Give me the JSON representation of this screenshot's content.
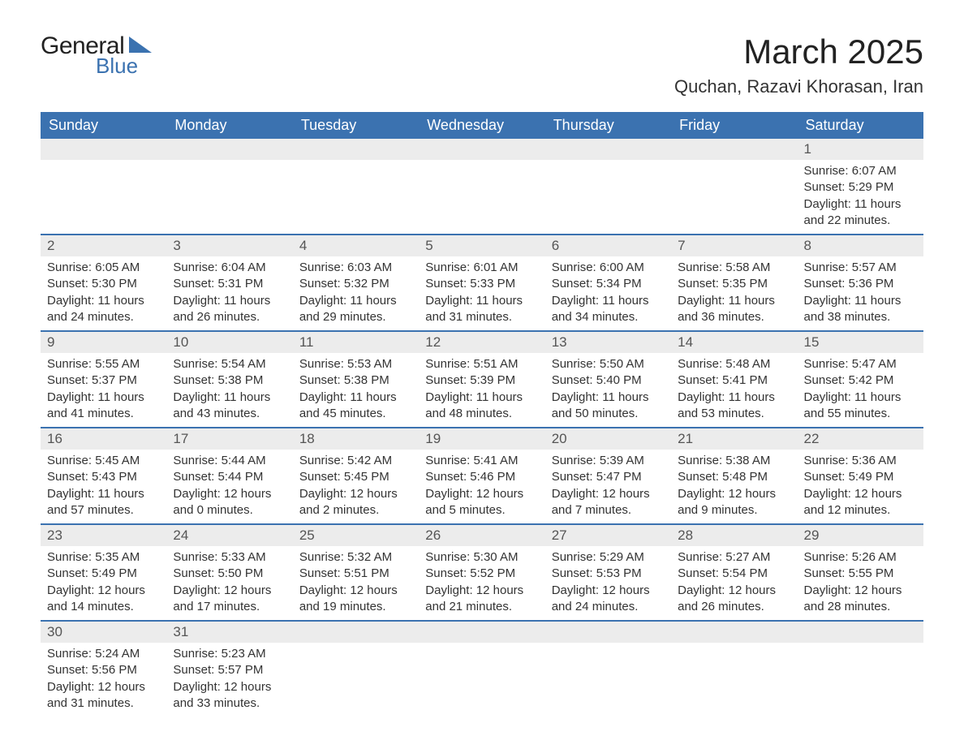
{
  "brand": {
    "main": "General",
    "sub": "Blue",
    "accent_color": "#3b72b0"
  },
  "header": {
    "month_title": "March 2025",
    "location": "Quchan, Razavi Khorasan, Iran"
  },
  "calendar": {
    "headers": [
      "Sunday",
      "Monday",
      "Tuesday",
      "Wednesday",
      "Thursday",
      "Friday",
      "Saturday"
    ],
    "header_bg": "#3b72b0",
    "header_fg": "#ffffff",
    "band_bg": "#ececec",
    "rule_color": "#3b72b0",
    "weeks": [
      [
        null,
        null,
        null,
        null,
        null,
        null,
        {
          "day": "1",
          "sunrise": "Sunrise: 6:07 AM",
          "sunset": "Sunset: 5:29 PM",
          "daylight1": "Daylight: 11 hours",
          "daylight2": "and 22 minutes."
        }
      ],
      [
        {
          "day": "2",
          "sunrise": "Sunrise: 6:05 AM",
          "sunset": "Sunset: 5:30 PM",
          "daylight1": "Daylight: 11 hours",
          "daylight2": "and 24 minutes."
        },
        {
          "day": "3",
          "sunrise": "Sunrise: 6:04 AM",
          "sunset": "Sunset: 5:31 PM",
          "daylight1": "Daylight: 11 hours",
          "daylight2": "and 26 minutes."
        },
        {
          "day": "4",
          "sunrise": "Sunrise: 6:03 AM",
          "sunset": "Sunset: 5:32 PM",
          "daylight1": "Daylight: 11 hours",
          "daylight2": "and 29 minutes."
        },
        {
          "day": "5",
          "sunrise": "Sunrise: 6:01 AM",
          "sunset": "Sunset: 5:33 PM",
          "daylight1": "Daylight: 11 hours",
          "daylight2": "and 31 minutes."
        },
        {
          "day": "6",
          "sunrise": "Sunrise: 6:00 AM",
          "sunset": "Sunset: 5:34 PM",
          "daylight1": "Daylight: 11 hours",
          "daylight2": "and 34 minutes."
        },
        {
          "day": "7",
          "sunrise": "Sunrise: 5:58 AM",
          "sunset": "Sunset: 5:35 PM",
          "daylight1": "Daylight: 11 hours",
          "daylight2": "and 36 minutes."
        },
        {
          "day": "8",
          "sunrise": "Sunrise: 5:57 AM",
          "sunset": "Sunset: 5:36 PM",
          "daylight1": "Daylight: 11 hours",
          "daylight2": "and 38 minutes."
        }
      ],
      [
        {
          "day": "9",
          "sunrise": "Sunrise: 5:55 AM",
          "sunset": "Sunset: 5:37 PM",
          "daylight1": "Daylight: 11 hours",
          "daylight2": "and 41 minutes."
        },
        {
          "day": "10",
          "sunrise": "Sunrise: 5:54 AM",
          "sunset": "Sunset: 5:38 PM",
          "daylight1": "Daylight: 11 hours",
          "daylight2": "and 43 minutes."
        },
        {
          "day": "11",
          "sunrise": "Sunrise: 5:53 AM",
          "sunset": "Sunset: 5:38 PM",
          "daylight1": "Daylight: 11 hours",
          "daylight2": "and 45 minutes."
        },
        {
          "day": "12",
          "sunrise": "Sunrise: 5:51 AM",
          "sunset": "Sunset: 5:39 PM",
          "daylight1": "Daylight: 11 hours",
          "daylight2": "and 48 minutes."
        },
        {
          "day": "13",
          "sunrise": "Sunrise: 5:50 AM",
          "sunset": "Sunset: 5:40 PM",
          "daylight1": "Daylight: 11 hours",
          "daylight2": "and 50 minutes."
        },
        {
          "day": "14",
          "sunrise": "Sunrise: 5:48 AM",
          "sunset": "Sunset: 5:41 PM",
          "daylight1": "Daylight: 11 hours",
          "daylight2": "and 53 minutes."
        },
        {
          "day": "15",
          "sunrise": "Sunrise: 5:47 AM",
          "sunset": "Sunset: 5:42 PM",
          "daylight1": "Daylight: 11 hours",
          "daylight2": "and 55 minutes."
        }
      ],
      [
        {
          "day": "16",
          "sunrise": "Sunrise: 5:45 AM",
          "sunset": "Sunset: 5:43 PM",
          "daylight1": "Daylight: 11 hours",
          "daylight2": "and 57 minutes."
        },
        {
          "day": "17",
          "sunrise": "Sunrise: 5:44 AM",
          "sunset": "Sunset: 5:44 PM",
          "daylight1": "Daylight: 12 hours",
          "daylight2": "and 0 minutes."
        },
        {
          "day": "18",
          "sunrise": "Sunrise: 5:42 AM",
          "sunset": "Sunset: 5:45 PM",
          "daylight1": "Daylight: 12 hours",
          "daylight2": "and 2 minutes."
        },
        {
          "day": "19",
          "sunrise": "Sunrise: 5:41 AM",
          "sunset": "Sunset: 5:46 PM",
          "daylight1": "Daylight: 12 hours",
          "daylight2": "and 5 minutes."
        },
        {
          "day": "20",
          "sunrise": "Sunrise: 5:39 AM",
          "sunset": "Sunset: 5:47 PM",
          "daylight1": "Daylight: 12 hours",
          "daylight2": "and 7 minutes."
        },
        {
          "day": "21",
          "sunrise": "Sunrise: 5:38 AM",
          "sunset": "Sunset: 5:48 PM",
          "daylight1": "Daylight: 12 hours",
          "daylight2": "and 9 minutes."
        },
        {
          "day": "22",
          "sunrise": "Sunrise: 5:36 AM",
          "sunset": "Sunset: 5:49 PM",
          "daylight1": "Daylight: 12 hours",
          "daylight2": "and 12 minutes."
        }
      ],
      [
        {
          "day": "23",
          "sunrise": "Sunrise: 5:35 AM",
          "sunset": "Sunset: 5:49 PM",
          "daylight1": "Daylight: 12 hours",
          "daylight2": "and 14 minutes."
        },
        {
          "day": "24",
          "sunrise": "Sunrise: 5:33 AM",
          "sunset": "Sunset: 5:50 PM",
          "daylight1": "Daylight: 12 hours",
          "daylight2": "and 17 minutes."
        },
        {
          "day": "25",
          "sunrise": "Sunrise: 5:32 AM",
          "sunset": "Sunset: 5:51 PM",
          "daylight1": "Daylight: 12 hours",
          "daylight2": "and 19 minutes."
        },
        {
          "day": "26",
          "sunrise": "Sunrise: 5:30 AM",
          "sunset": "Sunset: 5:52 PM",
          "daylight1": "Daylight: 12 hours",
          "daylight2": "and 21 minutes."
        },
        {
          "day": "27",
          "sunrise": "Sunrise: 5:29 AM",
          "sunset": "Sunset: 5:53 PM",
          "daylight1": "Daylight: 12 hours",
          "daylight2": "and 24 minutes."
        },
        {
          "day": "28",
          "sunrise": "Sunrise: 5:27 AM",
          "sunset": "Sunset: 5:54 PM",
          "daylight1": "Daylight: 12 hours",
          "daylight2": "and 26 minutes."
        },
        {
          "day": "29",
          "sunrise": "Sunrise: 5:26 AM",
          "sunset": "Sunset: 5:55 PM",
          "daylight1": "Daylight: 12 hours",
          "daylight2": "and 28 minutes."
        }
      ],
      [
        {
          "day": "30",
          "sunrise": "Sunrise: 5:24 AM",
          "sunset": "Sunset: 5:56 PM",
          "daylight1": "Daylight: 12 hours",
          "daylight2": "and 31 minutes."
        },
        {
          "day": "31",
          "sunrise": "Sunrise: 5:23 AM",
          "sunset": "Sunset: 5:57 PM",
          "daylight1": "Daylight: 12 hours",
          "daylight2": "and 33 minutes."
        },
        null,
        null,
        null,
        null,
        null
      ]
    ]
  }
}
